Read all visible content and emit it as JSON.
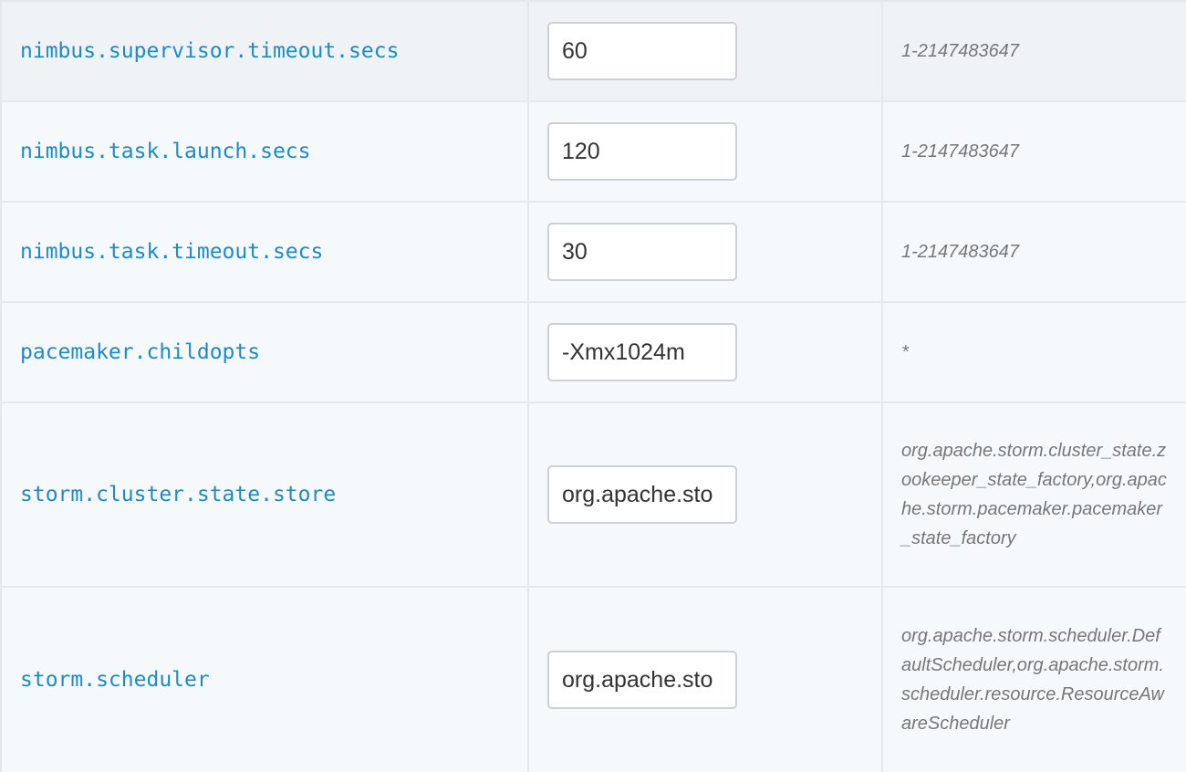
{
  "rows": [
    {
      "name": "nimbus.supervisor.timeout.secs",
      "value": "60",
      "constraint": "1-2147483647"
    },
    {
      "name": "nimbus.task.launch.secs",
      "value": "120",
      "constraint": "1-2147483647"
    },
    {
      "name": "nimbus.task.timeout.secs",
      "value": "30",
      "constraint": "1-2147483647"
    },
    {
      "name": "pacemaker.childopts",
      "value": "-Xmx1024m",
      "constraint": "*"
    },
    {
      "name": "storm.cluster.state.store",
      "value": "org.apache.sto",
      "constraint": "org.apache.storm.cluster_state.zookeeper_state_factory,org.apache.storm.pacemaker.pacemaker_state_factory"
    },
    {
      "name": "storm.scheduler",
      "value": "org.apache.sto",
      "constraint": "org.apache.storm.scheduler.DefaultScheduler,org.apache.storm.scheduler.resource.ResourceAwareScheduler"
    }
  ]
}
